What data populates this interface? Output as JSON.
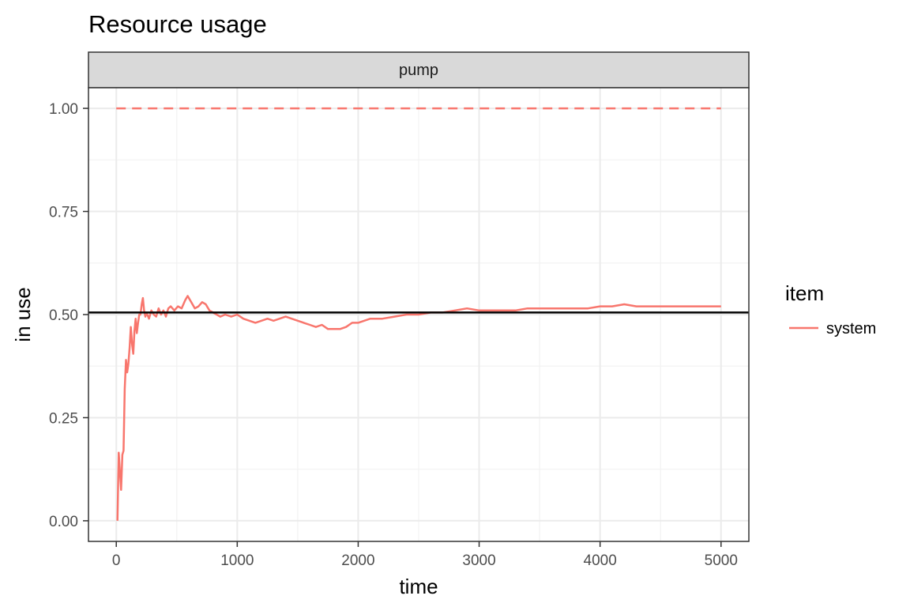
{
  "chart_data": {
    "type": "line",
    "title": "Resource usage",
    "facet": "pump",
    "xlabel": "time",
    "ylabel": "in use",
    "xlim": [
      -230,
      5230
    ],
    "ylim": [
      -0.05,
      1.05
    ],
    "x_ticks": [
      0,
      1000,
      2000,
      3000,
      4000,
      5000
    ],
    "x_tick_labels": [
      "0",
      "1000",
      "2000",
      "3000",
      "4000",
      "5000"
    ],
    "y_ticks": [
      0,
      0.25,
      0.5,
      0.75,
      1.0
    ],
    "y_tick_labels": [
      "0.00",
      "0.25",
      "0.50",
      "0.75",
      "1.00"
    ],
    "grid": true,
    "legend": {
      "title": "item",
      "position": "right"
    },
    "capacity_line": {
      "y": 1.0,
      "x_range": [
        0,
        5000
      ],
      "style": "dashed",
      "color": "#f8766d"
    },
    "mean_line": {
      "y": 0.505,
      "style": "solid",
      "color": "#000000"
    },
    "series": [
      {
        "name": "system",
        "color": "#f8766d",
        "x": [
          10,
          20,
          30,
          40,
          50,
          60,
          70,
          80,
          90,
          100,
          110,
          120,
          130,
          140,
          150,
          160,
          170,
          180,
          190,
          200,
          210,
          220,
          230,
          240,
          250,
          270,
          290,
          310,
          330,
          350,
          370,
          390,
          410,
          430,
          450,
          480,
          510,
          540,
          570,
          590,
          620,
          650,
          680,
          710,
          740,
          770,
          800,
          830,
          860,
          900,
          950,
          1000,
          1050,
          1100,
          1150,
          1200,
          1250,
          1300,
          1350,
          1400,
          1450,
          1500,
          1550,
          1600,
          1650,
          1700,
          1750,
          1800,
          1850,
          1900,
          1950,
          2000,
          2050,
          2100,
          2200,
          2300,
          2400,
          2500,
          2600,
          2700,
          2800,
          2900,
          3000,
          3100,
          3200,
          3300,
          3400,
          3500,
          3600,
          3700,
          3800,
          3900,
          4000,
          4100,
          4200,
          4300,
          4400,
          4500,
          4600,
          4700,
          4800,
          4900,
          5000
        ],
        "values": [
          0.0,
          0.165,
          0.12,
          0.075,
          0.16,
          0.17,
          0.32,
          0.39,
          0.36,
          0.38,
          0.42,
          0.47,
          0.43,
          0.405,
          0.46,
          0.49,
          0.455,
          0.48,
          0.5,
          0.5,
          0.525,
          0.54,
          0.51,
          0.495,
          0.505,
          0.49,
          0.51,
          0.5,
          0.495,
          0.515,
          0.5,
          0.51,
          0.495,
          0.515,
          0.52,
          0.51,
          0.52,
          0.515,
          0.535,
          0.545,
          0.53,
          0.515,
          0.52,
          0.53,
          0.525,
          0.51,
          0.505,
          0.5,
          0.495,
          0.5,
          0.495,
          0.5,
          0.49,
          0.485,
          0.48,
          0.485,
          0.49,
          0.485,
          0.49,
          0.495,
          0.49,
          0.485,
          0.48,
          0.475,
          0.47,
          0.475,
          0.465,
          0.465,
          0.465,
          0.47,
          0.48,
          0.48,
          0.485,
          0.49,
          0.49,
          0.495,
          0.5,
          0.5,
          0.505,
          0.505,
          0.51,
          0.515,
          0.51,
          0.51,
          0.51,
          0.51,
          0.515,
          0.515,
          0.515,
          0.515,
          0.515,
          0.515,
          0.52,
          0.52,
          0.525,
          0.52,
          0.52,
          0.52,
          0.52,
          0.52,
          0.52,
          0.52,
          0.52
        ]
      }
    ]
  }
}
